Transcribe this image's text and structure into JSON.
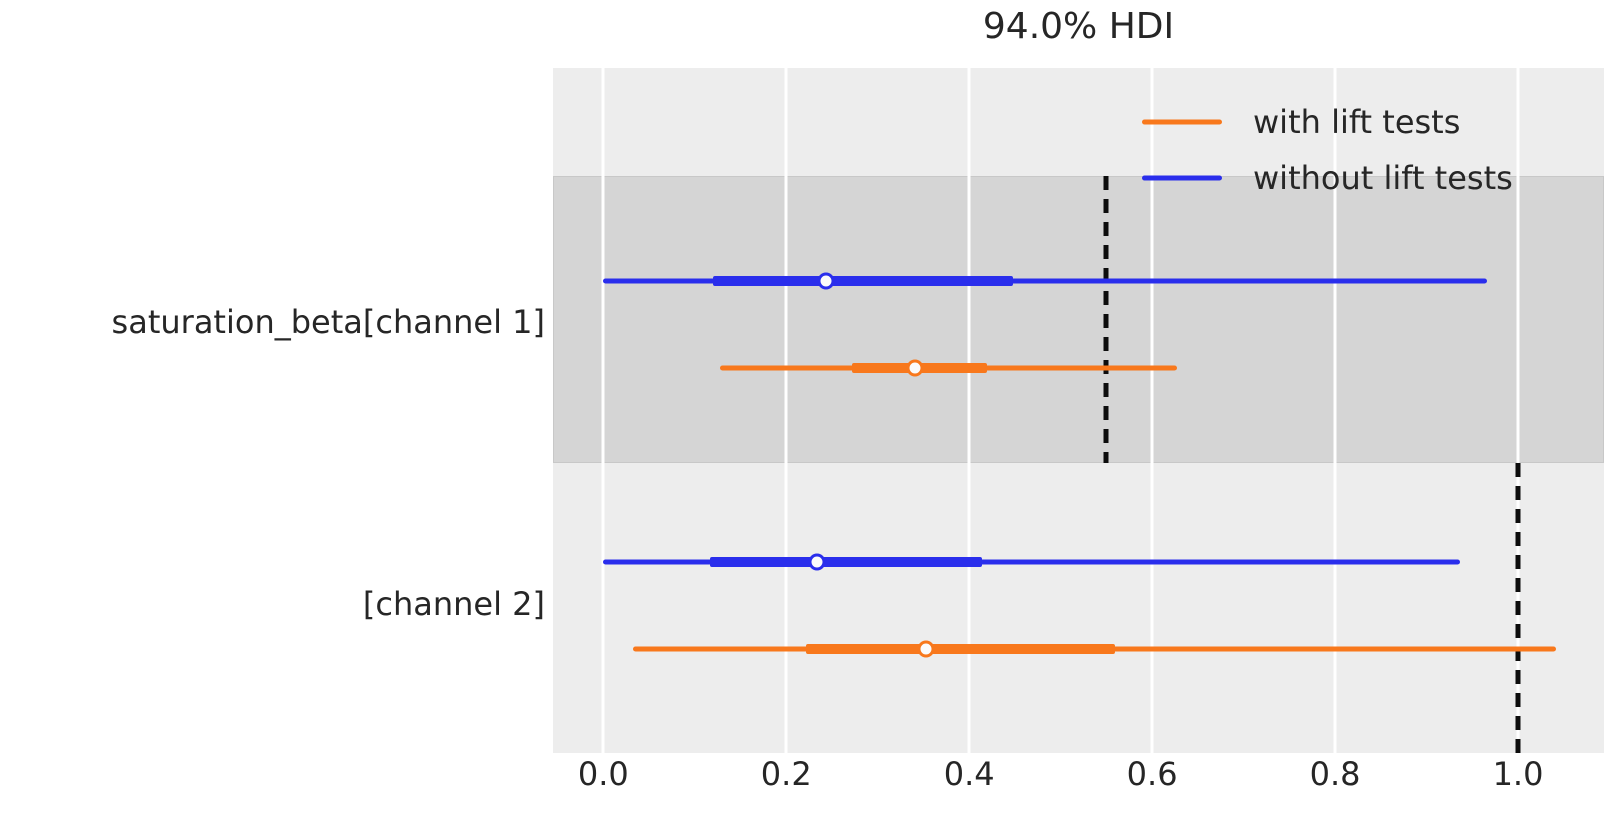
{
  "title": "94.0% HDI",
  "colors": {
    "blue": "#2a2eec",
    "orange": "#f8781c",
    "plot_background": "#ededed",
    "shaded_band": "#d5d5d5",
    "gridline": "#ffffff",
    "reference_line": "#0d0d0d",
    "marker_face": "#fbfbfb",
    "text": "#262626"
  },
  "legend": {
    "items": [
      {
        "label": "with lift tests",
        "color": "orange"
      },
      {
        "label": "without lift tests",
        "color": "blue"
      }
    ]
  },
  "chart_data": {
    "type": "forest",
    "title": "94.0% HDI",
    "hdi_probability": 0.94,
    "xlim": [
      -0.055,
      1.094
    ],
    "x_ticks": [
      0.0,
      0.2,
      0.4,
      0.6,
      0.8,
      1.0
    ],
    "x_tick_labels": [
      "0.0",
      "0.2",
      "0.4",
      "0.6",
      "0.8",
      "1.0"
    ],
    "grid": "vertical-white-on-gray",
    "legend_position": "upper right, no frame",
    "rows": [
      {
        "label": "saturation_beta[channel 1]",
        "shaded": true,
        "reference_value": 0.55,
        "series": [
          {
            "name": "without lift tests",
            "color": "blue",
            "hdi_low": 0.0,
            "hdi_high": 0.966,
            "quartile_low": 0.12,
            "quartile_high": 0.448,
            "median": 0.243
          },
          {
            "name": "with lift tests",
            "color": "orange",
            "hdi_low": 0.128,
            "hdi_high": 0.627,
            "quartile_low": 0.272,
            "quartile_high": 0.419,
            "median": 0.341
          }
        ]
      },
      {
        "label": "[channel 2]",
        "shaded": false,
        "reference_value": 1.0,
        "series": [
          {
            "name": "without lift tests",
            "color": "blue",
            "hdi_low": 0.0,
            "hdi_high": 0.937,
            "quartile_low": 0.117,
            "quartile_high": 0.414,
            "median": 0.234
          },
          {
            "name": "with lift tests",
            "color": "orange",
            "hdi_low": 0.033,
            "hdi_high": 1.041,
            "quartile_low": 0.222,
            "quartile_high": 0.559,
            "median": 0.353
          }
        ]
      }
    ]
  }
}
